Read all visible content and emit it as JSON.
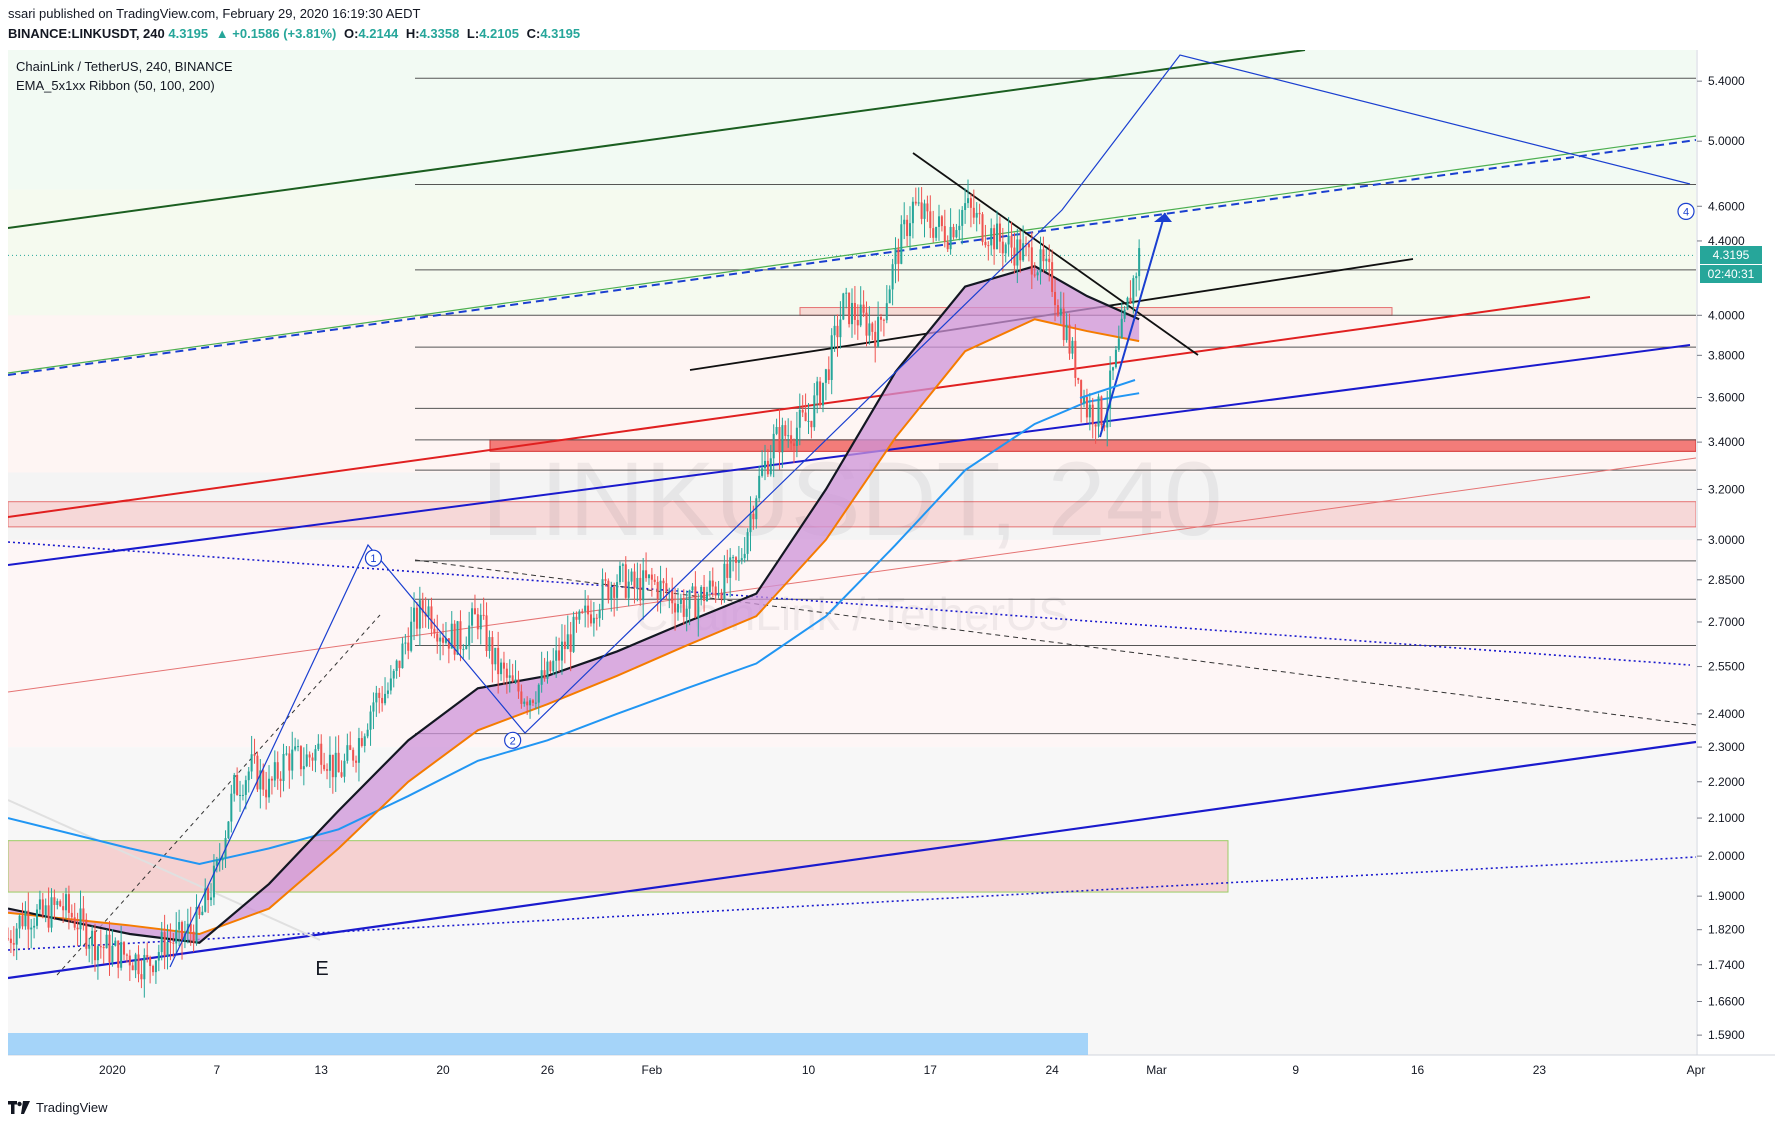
{
  "header": {
    "published": "ssari published on TradingView.com, February 29, 2020 16:19:30 AEDT",
    "symbol": "BINANCE:LINKUSDT, 240",
    "last": "4.3195",
    "change": "+0.1586 (+3.81%)",
    "o_label": "O:",
    "o": "4.2144",
    "h_label": "H:",
    "h": "4.3358",
    "l_label": "L:",
    "l": "4.2105",
    "c_label": "C:",
    "c": "4.3195",
    "up_arrow_icon": "triangle-up-icon"
  },
  "legend": {
    "title": "ChainLink / TetherUS, 240, BINANCE",
    "indicator": "EMA_5x1xx Ribbon  (50, 100, 200)"
  },
  "watermark": {
    "symbol": "LINKUSDT, 240",
    "name": "ChainLink / TetherUS"
  },
  "footer": {
    "brand": "TradingView",
    "logo_icon": "tradingview-logo-icon"
  },
  "colors": {
    "up": "#26a69a",
    "down": "#ef5350",
    "ema50": "#131722",
    "ema100": "#f57c00",
    "ema200": "#2196f3",
    "ribbon": "#ce93d8",
    "trend_blue": "#1a1acd",
    "trend_red": "#e02020",
    "green_line": "#4caf50"
  },
  "chart_data": {
    "type": "line",
    "title": "ChainLink / TetherUS, 240, BINANCE",
    "price_scale": "log",
    "y_ticks": [
      "5.4000",
      "5.0000",
      "4.6000",
      "4.4000",
      "4.0000",
      "3.8000",
      "3.6000",
      "3.4000",
      "3.2000",
      "3.0000",
      "2.8500",
      "2.7000",
      "2.5500",
      "2.4000",
      "2.3000",
      "2.2000",
      "2.1000",
      "2.0000",
      "1.9000",
      "1.8200",
      "1.7400",
      "1.6600",
      "1.5900"
    ],
    "y_tick_values": [
      5.4,
      5.0,
      4.6,
      4.4,
      4.0,
      3.8,
      3.6,
      3.4,
      3.2,
      3.0,
      2.85,
      2.7,
      2.55,
      2.4,
      2.3,
      2.2,
      2.1,
      2.0,
      1.9,
      1.82,
      1.74,
      1.66,
      1.59
    ],
    "ylim": [
      1.55,
      5.62
    ],
    "x_ticks": [
      "2020",
      "7",
      "13",
      "20",
      "26",
      "Feb",
      "10",
      "17",
      "24",
      "Mar",
      "9",
      "16",
      "23",
      "Apr"
    ],
    "x_tick_dates": [
      "2020-01-01",
      "2020-01-07",
      "2020-01-13",
      "2020-01-20",
      "2020-01-26",
      "2020-02-01",
      "2020-02-10",
      "2020-02-17",
      "2020-02-24",
      "2020-03-01",
      "2020-03-09",
      "2020-03-16",
      "2020-03-23",
      "2020-04-01"
    ],
    "xlim": [
      "2019-12-26",
      "2020-04-01"
    ],
    "last_price": "4.3195",
    "countdown": "02:40:31",
    "price_path": [
      [
        "2019-12-26",
        1.8
      ],
      [
        "2019-12-27",
        1.86
      ],
      [
        "2019-12-28",
        1.85
      ],
      [
        "2019-12-29",
        1.88
      ],
      [
        "2019-12-30",
        1.84
      ],
      [
        "2019-12-31",
        1.79
      ],
      [
        "2020-01-01",
        1.77
      ],
      [
        "2020-01-02",
        1.76
      ],
      [
        "2020-01-03",
        1.74
      ],
      [
        "2020-01-04",
        1.79
      ],
      [
        "2020-01-05",
        1.8
      ],
      [
        "2020-01-06",
        1.84
      ],
      [
        "2020-01-07",
        1.96
      ],
      [
        "2020-01-08",
        2.18
      ],
      [
        "2020-01-09",
        2.24
      ],
      [
        "2020-01-10",
        2.18
      ],
      [
        "2020-01-11",
        2.27
      ],
      [
        "2020-01-12",
        2.26
      ],
      [
        "2020-01-13",
        2.3
      ],
      [
        "2020-01-14",
        2.22
      ],
      [
        "2020-01-15",
        2.3
      ],
      [
        "2020-01-16",
        2.44
      ],
      [
        "2020-01-17",
        2.48
      ],
      [
        "2020-01-18",
        2.66
      ],
      [
        "2020-01-19",
        2.76
      ],
      [
        "2020-01-20",
        2.66
      ],
      [
        "2020-01-21",
        2.64
      ],
      [
        "2020-01-22",
        2.72
      ],
      [
        "2020-01-23",
        2.56
      ],
      [
        "2020-01-24",
        2.48
      ],
      [
        "2020-01-25",
        2.46
      ],
      [
        "2020-01-26",
        2.52
      ],
      [
        "2020-01-27",
        2.62
      ],
      [
        "2020-01-28",
        2.7
      ],
      [
        "2020-01-29",
        2.79
      ],
      [
        "2020-01-30",
        2.86
      ],
      [
        "2020-01-31",
        2.82
      ],
      [
        "2020-02-01",
        2.84
      ],
      [
        "2020-02-02",
        2.8
      ],
      [
        "2020-02-03",
        2.75
      ],
      [
        "2020-02-04",
        2.8
      ],
      [
        "2020-02-05",
        2.84
      ],
      [
        "2020-02-06",
        2.9
      ],
      [
        "2020-02-07",
        3.2
      ],
      [
        "2020-02-08",
        3.4
      ],
      [
        "2020-02-09",
        3.45
      ],
      [
        "2020-02-10",
        3.5
      ],
      [
        "2020-02-11",
        3.7
      ],
      [
        "2020-02-12",
        4.05
      ],
      [
        "2020-02-13",
        3.98
      ],
      [
        "2020-02-14",
        3.92
      ],
      [
        "2020-02-15",
        4.3
      ],
      [
        "2020-02-16",
        4.6
      ],
      [
        "2020-02-17",
        4.5
      ],
      [
        "2020-02-18",
        4.45
      ],
      [
        "2020-02-19",
        4.6
      ],
      [
        "2020-02-20",
        4.48
      ],
      [
        "2020-02-21",
        4.4
      ],
      [
        "2020-02-22",
        4.35
      ],
      [
        "2020-02-23",
        4.3
      ],
      [
        "2020-02-24",
        4.18
      ],
      [
        "2020-02-25",
        3.85
      ],
      [
        "2020-02-26",
        3.55
      ],
      [
        "2020-02-27",
        3.52
      ],
      [
        "2020-02-28",
        3.9
      ],
      [
        "2020-02-29",
        4.32
      ]
    ],
    "ema50": [
      [
        "2019-12-26",
        1.87
      ],
      [
        "2020-01-02",
        1.81
      ],
      [
        "2020-01-06",
        1.79
      ],
      [
        "2020-01-10",
        1.93
      ],
      [
        "2020-01-14",
        2.12
      ],
      [
        "2020-01-18",
        2.32
      ],
      [
        "2020-01-22",
        2.48
      ],
      [
        "2020-01-26",
        2.52
      ],
      [
        "2020-01-30",
        2.6
      ],
      [
        "2020-02-03",
        2.7
      ],
      [
        "2020-02-07",
        2.8
      ],
      [
        "2020-02-11",
        3.2
      ],
      [
        "2020-02-15",
        3.72
      ],
      [
        "2020-02-19",
        4.15
      ],
      [
        "2020-02-23",
        4.26
      ],
      [
        "2020-02-26",
        4.1
      ],
      [
        "2020-02-29",
        3.98
      ]
    ],
    "ema100": [
      [
        "2019-12-26",
        1.86
      ],
      [
        "2020-01-02",
        1.83
      ],
      [
        "2020-01-06",
        1.81
      ],
      [
        "2020-01-10",
        1.87
      ],
      [
        "2020-01-14",
        2.02
      ],
      [
        "2020-01-18",
        2.2
      ],
      [
        "2020-01-22",
        2.35
      ],
      [
        "2020-01-26",
        2.43
      ],
      [
        "2020-01-30",
        2.52
      ],
      [
        "2020-02-03",
        2.62
      ],
      [
        "2020-02-07",
        2.72
      ],
      [
        "2020-02-11",
        3.0
      ],
      [
        "2020-02-15",
        3.42
      ],
      [
        "2020-02-19",
        3.82
      ],
      [
        "2020-02-23",
        3.98
      ],
      [
        "2020-02-26",
        3.92
      ],
      [
        "2020-02-29",
        3.87
      ]
    ],
    "ema200": [
      [
        "2019-12-26",
        2.1
      ],
      [
        "2020-01-02",
        2.02
      ],
      [
        "2020-01-06",
        1.98
      ],
      [
        "2020-01-10",
        2.02
      ],
      [
        "2020-01-14",
        2.07
      ],
      [
        "2020-01-18",
        2.16
      ],
      [
        "2020-01-22",
        2.26
      ],
      [
        "2020-01-26",
        2.32
      ],
      [
        "2020-01-30",
        2.4
      ],
      [
        "2020-02-03",
        2.48
      ],
      [
        "2020-02-07",
        2.56
      ],
      [
        "2020-02-11",
        2.72
      ],
      [
        "2020-02-15",
        2.98
      ],
      [
        "2020-02-19",
        3.28
      ],
      [
        "2020-02-23",
        3.48
      ],
      [
        "2020-02-26",
        3.58
      ],
      [
        "2020-02-29",
        3.62
      ]
    ],
    "annotations": [
      {
        "label": "1",
        "at": [
          "2020-01-16",
          2.93
        ]
      },
      {
        "label": "2",
        "at": [
          "2020-01-24",
          2.32
        ]
      },
      {
        "label": "4",
        "at": [
          "2020-04-01",
          4.57
        ]
      },
      {
        "label": "E",
        "at": [
          "2020-01-13",
          1.72
        ]
      }
    ]
  }
}
